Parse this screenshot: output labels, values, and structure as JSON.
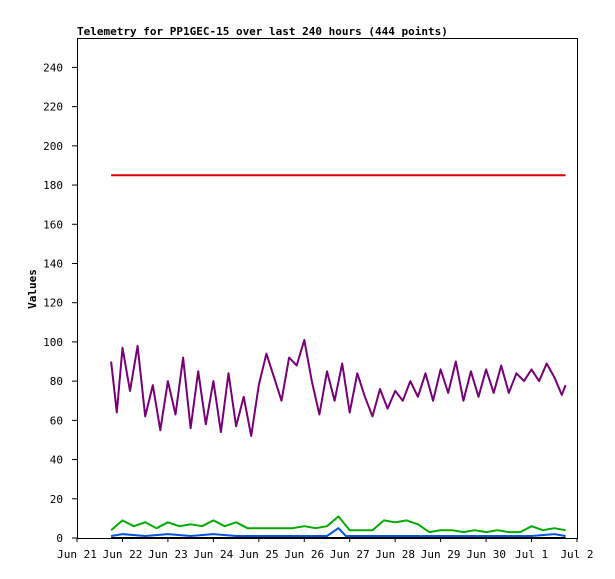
{
  "chart_data": {
    "type": "line",
    "title": "Telemetry for PP1GEC-15 over last 240 hours (444 points)",
    "xlabel": "",
    "ylabel": "Values",
    "xlim": [
      "Jun 21",
      "Jul 2"
    ],
    "ylim": [
      0,
      255
    ],
    "x_ticks": [
      "Jun 21",
      "Jun 22",
      "Jun 23",
      "Jun 24",
      "Jun 25",
      "Jun 26",
      "Jun 27",
      "Jun 28",
      "Jun 29",
      "Jun 30",
      "Jul 1",
      "Jul 2"
    ],
    "y_ticks": [
      0,
      20,
      40,
      60,
      80,
      100,
      120,
      140,
      160,
      180,
      200,
      220,
      240
    ],
    "grid": false,
    "legend": "none",
    "series": [
      {
        "color": "#dd0000",
        "points": [
          [
            "Jun 21 18:00",
            185
          ],
          [
            "Jul 1 18:00",
            185
          ]
        ]
      },
      {
        "color": "#770077",
        "points": [
          [
            "Jun 21 18:00",
            90
          ],
          [
            "Jun 21 21:00",
            64
          ],
          [
            "Jun 22 00:00",
            97
          ],
          [
            "Jun 22 04:00",
            75
          ],
          [
            "Jun 22 08:00",
            98
          ],
          [
            "Jun 22 12:00",
            62
          ],
          [
            "Jun 22 16:00",
            78
          ],
          [
            "Jun 22 20:00",
            55
          ],
          [
            "Jun 23 00:00",
            80
          ],
          [
            "Jun 23 04:00",
            63
          ],
          [
            "Jun 23 08:00",
            92
          ],
          [
            "Jun 23 12:00",
            56
          ],
          [
            "Jun 23 16:00",
            85
          ],
          [
            "Jun 23 20:00",
            58
          ],
          [
            "Jun 24 00:00",
            80
          ],
          [
            "Jun 24 04:00",
            54
          ],
          [
            "Jun 24 08:00",
            84
          ],
          [
            "Jun 24 12:00",
            57
          ],
          [
            "Jun 24 16:00",
            72
          ],
          [
            "Jun 24 20:00",
            52
          ],
          [
            "Jun 25 00:00",
            78
          ],
          [
            "Jun 25 04:00",
            94
          ],
          [
            "Jun 25 08:00",
            82
          ],
          [
            "Jun 25 12:00",
            70
          ],
          [
            "Jun 25 16:00",
            92
          ],
          [
            "Jun 25 20:00",
            88
          ],
          [
            "Jun 26 00:00",
            101
          ],
          [
            "Jun 26 04:00",
            80
          ],
          [
            "Jun 26 08:00",
            63
          ],
          [
            "Jun 26 12:00",
            85
          ],
          [
            "Jun 26 16:00",
            70
          ],
          [
            "Jun 26 20:00",
            89
          ],
          [
            "Jun 27 00:00",
            64
          ],
          [
            "Jun 27 04:00",
            84
          ],
          [
            "Jun 27 08:00",
            72
          ],
          [
            "Jun 27 12:00",
            62
          ],
          [
            "Jun 27 16:00",
            76
          ],
          [
            "Jun 27 20:00",
            66
          ],
          [
            "Jun 28 00:00",
            75
          ],
          [
            "Jun 28 04:00",
            70
          ],
          [
            "Jun 28 08:00",
            80
          ],
          [
            "Jun 28 12:00",
            72
          ],
          [
            "Jun 28 16:00",
            84
          ],
          [
            "Jun 28 20:00",
            70
          ],
          [
            "Jun 29 00:00",
            86
          ],
          [
            "Jun 29 04:00",
            74
          ],
          [
            "Jun 29 08:00",
            90
          ],
          [
            "Jun 29 12:00",
            70
          ],
          [
            "Jun 29 16:00",
            85
          ],
          [
            "Jun 29 20:00",
            72
          ],
          [
            "Jun 30 00:00",
            86
          ],
          [
            "Jun 30 04:00",
            74
          ],
          [
            "Jun 30 08:00",
            88
          ],
          [
            "Jun 30 12:00",
            74
          ],
          [
            "Jun 30 16:00",
            84
          ],
          [
            "Jun 30 20:00",
            80
          ],
          [
            "Jul 1 00:00",
            86
          ],
          [
            "Jul 1 04:00",
            80
          ],
          [
            "Jul 1 08:00",
            89
          ],
          [
            "Jul 1 12:00",
            82
          ],
          [
            "Jul 1 16:00",
            73
          ],
          [
            "Jul 1 18:00",
            78
          ]
        ]
      },
      {
        "color": "#00aa00",
        "points": [
          [
            "Jun 21 18:00",
            4
          ],
          [
            "Jun 22 00:00",
            9
          ],
          [
            "Jun 22 06:00",
            6
          ],
          [
            "Jun 22 12:00",
            8
          ],
          [
            "Jun 22 18:00",
            5
          ],
          [
            "Jun 23 00:00",
            8
          ],
          [
            "Jun 23 06:00",
            6
          ],
          [
            "Jun 23 12:00",
            7
          ],
          [
            "Jun 23 18:00",
            6
          ],
          [
            "Jun 24 00:00",
            9
          ],
          [
            "Jun 24 06:00",
            6
          ],
          [
            "Jun 24 12:00",
            8
          ],
          [
            "Jun 24 18:00",
            5
          ],
          [
            "Jun 25 00:00",
            5
          ],
          [
            "Jun 25 06:00",
            5
          ],
          [
            "Jun 25 12:00",
            5
          ],
          [
            "Jun 25 18:00",
            5
          ],
          [
            "Jun 26 00:00",
            6
          ],
          [
            "Jun 26 06:00",
            5
          ],
          [
            "Jun 26 12:00",
            6
          ],
          [
            "Jun 26 18:00",
            11
          ],
          [
            "Jun 27 00:00",
            4
          ],
          [
            "Jun 27 06:00",
            4
          ],
          [
            "Jun 27 12:00",
            4
          ],
          [
            "Jun 27 18:00",
            9
          ],
          [
            "Jun 28 00:00",
            8
          ],
          [
            "Jun 28 06:00",
            9
          ],
          [
            "Jun 28 12:00",
            7
          ],
          [
            "Jun 28 18:00",
            3
          ],
          [
            "Jun 29 00:00",
            4
          ],
          [
            "Jun 29 06:00",
            4
          ],
          [
            "Jun 29 12:00",
            3
          ],
          [
            "Jun 29 18:00",
            4
          ],
          [
            "Jun 30 00:00",
            3
          ],
          [
            "Jun 30 06:00",
            4
          ],
          [
            "Jun 30 12:00",
            3
          ],
          [
            "Jun 30 18:00",
            3
          ],
          [
            "Jul 1 00:00",
            6
          ],
          [
            "Jul 1 06:00",
            4
          ],
          [
            "Jul 1 12:00",
            5
          ],
          [
            "Jul 1 18:00",
            4
          ]
        ]
      },
      {
        "color": "#0055dd",
        "points": [
          [
            "Jun 21 18:00",
            1
          ],
          [
            "Jun 22 00:00",
            2
          ],
          [
            "Jun 22 12:00",
            1
          ],
          [
            "Jun 23 00:00",
            2
          ],
          [
            "Jun 23 12:00",
            1
          ],
          [
            "Jun 24 00:00",
            2
          ],
          [
            "Jun 24 12:00",
            1
          ],
          [
            "Jun 25 00:00",
            1
          ],
          [
            "Jun 25 12:00",
            1
          ],
          [
            "Jun 26 00:00",
            1
          ],
          [
            "Jun 26 12:00",
            1
          ],
          [
            "Jun 26 18:00",
            5
          ],
          [
            "Jun 26 22:00",
            1
          ],
          [
            "Jun 27 12:00",
            1
          ],
          [
            "Jun 28 00:00",
            1
          ],
          [
            "Jun 28 12:00",
            1
          ],
          [
            "Jun 29 00:00",
            1
          ],
          [
            "Jun 29 12:00",
            1
          ],
          [
            "Jun 30 00:00",
            1
          ],
          [
            "Jun 30 12:00",
            1
          ],
          [
            "Jul 1 00:00",
            1
          ],
          [
            "Jul 1 12:00",
            2
          ],
          [
            "Jul 1 18:00",
            1
          ]
        ]
      },
      {
        "color": "#000000",
        "points": [
          [
            "Jun 21 18:00",
            0
          ],
          [
            "Jul 1 18:00",
            0
          ]
        ]
      }
    ]
  }
}
